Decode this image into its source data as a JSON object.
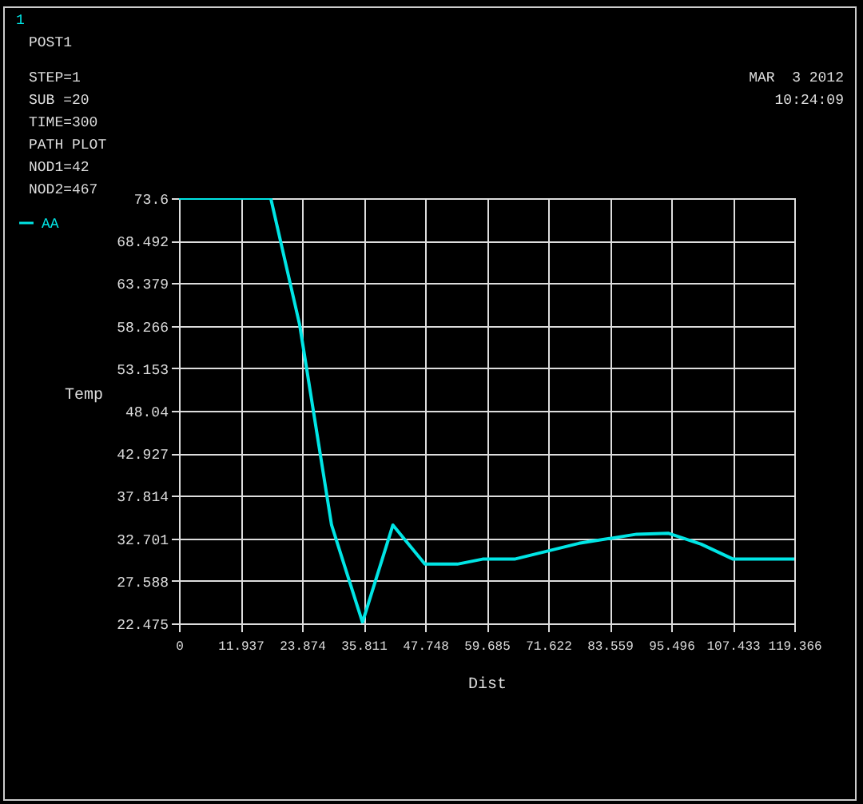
{
  "chart_data": {
    "type": "line",
    "xlabel": "Dist",
    "ylabel": "Temp",
    "annotations": [
      "1",
      "POST1",
      "STEP=1",
      "SUB =20",
      "TIME=300",
      "PATH PLOT",
      "NOD1=42",
      "NOD2=467",
      "MAR  3 2012",
      "10:24:09"
    ],
    "x": [
      0,
      17.8,
      23.4,
      29.6,
      35.6,
      41.5,
      47.7,
      54.0,
      58.9,
      65.1,
      77.6,
      88.8,
      95.0,
      101.3,
      107.5,
      119.366
    ],
    "series": [
      {
        "name": "AA",
        "color": "#00e5e5",
        "values": [
          73.6,
          73.6,
          58.4,
          34.3,
          22.6,
          34.3,
          29.6,
          29.6,
          30.2,
          30.2,
          32.1,
          33.2,
          33.3,
          32.0,
          30.2,
          30.2
        ]
      }
    ],
    "xlim": [
      0,
      119.366
    ],
    "xticks": [
      0,
      11.937,
      23.874,
      35.811,
      47.748,
      59.685,
      71.622,
      83.559,
      95.496,
      107.433,
      119.366
    ],
    "ylim": [
      22.475,
      73.6
    ],
    "yticks": [
      22.475,
      27.588,
      32.701,
      37.814,
      42.927,
      48.04,
      53.153,
      58.266,
      63.379,
      68.492,
      73.6
    ],
    "grid": true,
    "legend": "top left"
  }
}
